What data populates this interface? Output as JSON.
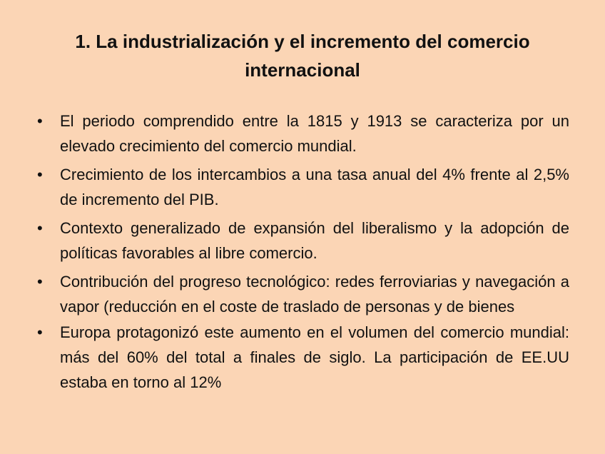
{
  "slide": {
    "title": "1. La industrialización y el incremento del comercio internacional",
    "bullet_glyph": "•",
    "bullets": [
      "El periodo comprendido entre la 1815 y 1913 se caracteriza por un elevado crecimiento del comercio mundial.",
      " Crecimiento de los intercambios a una tasa anual del 4% frente al 2,5% de incremento del PIB.",
      "Contexto generalizado de expansión del liberalismo y la adopción de políticas favorables al libre comercio.",
      "Contribución del progreso tecnológico: redes ferroviarias y navegación a vapor (reducción en el coste de traslado de personas y de bienes",
      "Europa protagonizó este aumento en el volumen del comercio mundial: más del 60% del total a finales de siglo. La participación de EE.UU estaba en torno al 12%"
    ],
    "background_color": "#FBD5B5"
  }
}
